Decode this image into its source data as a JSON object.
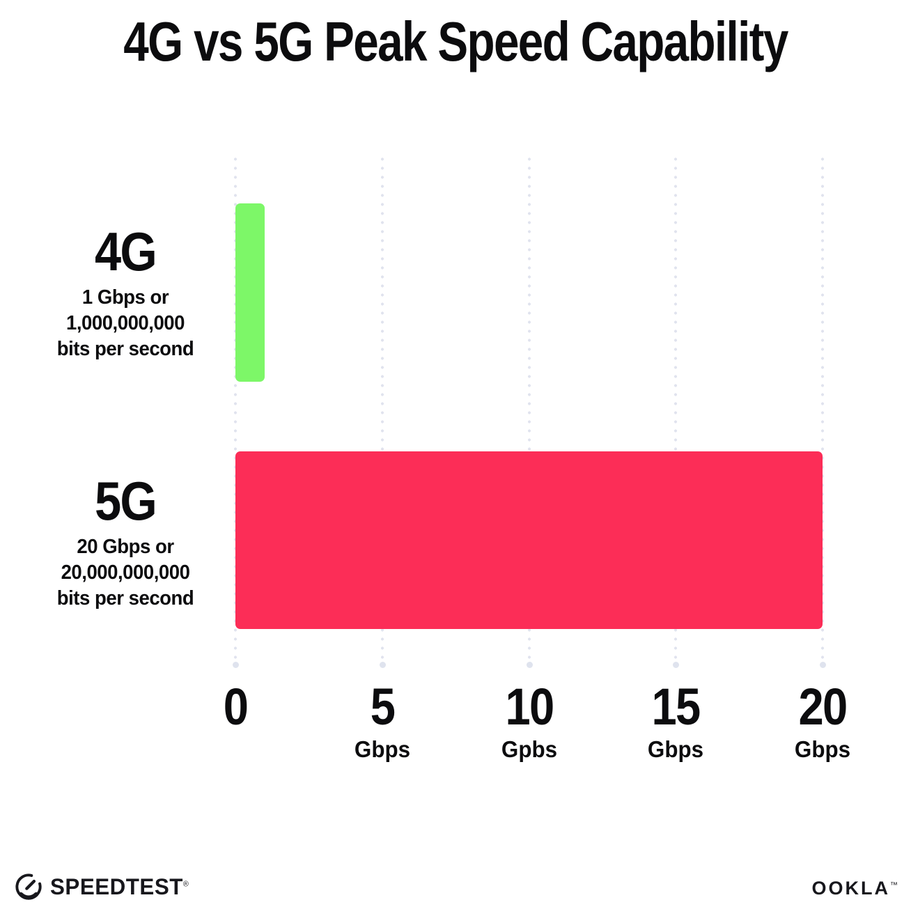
{
  "title": "4G vs 5G Peak Speed Capability",
  "chart_data": {
    "type": "bar",
    "orientation": "horizontal",
    "title": "4G vs 5G Peak Speed Capability",
    "categories": [
      "4G",
      "5G"
    ],
    "values": [
      1,
      20
    ],
    "bar_colors": [
      "#7DF768",
      "#FC2D57"
    ],
    "xlim": [
      0,
      20
    ],
    "grid": "vertical-dotted",
    "gridline_color": "#e0e3ee",
    "rows": [
      {
        "label": "4G",
        "subline1": "1 Gbps or",
        "subline2": "1,000,000,000",
        "subline3": "bits per second"
      },
      {
        "label": "5G",
        "subline1": "20 Gbps or",
        "subline2": "20,000,000,000",
        "subline3": "bits per second"
      }
    ],
    "x_ticks": [
      {
        "number": "0",
        "unit": ""
      },
      {
        "number": "5",
        "unit": "Gbps"
      },
      {
        "number": "10",
        "unit": "Gpbs"
      },
      {
        "number": "15",
        "unit": "Gbps"
      },
      {
        "number": "20",
        "unit": "Gbps"
      }
    ]
  },
  "footer": {
    "speedtest_label": "SPEEDTEST",
    "speedtest_mark": "®",
    "ookla_label": "OOKLA",
    "ookla_mark": "™"
  }
}
